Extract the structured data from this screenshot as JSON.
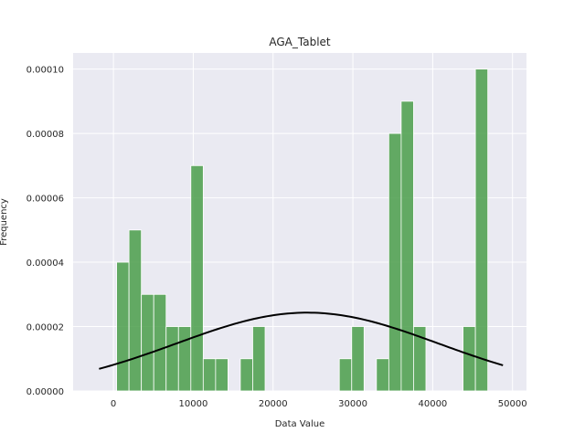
{
  "chart_data": {
    "type": "bar",
    "title": "AGA_Tablet",
    "xlabel": "Data Value",
    "ylabel": "Frequency",
    "xlim": [
      -5050,
      51750
    ],
    "ylim": [
      0,
      0.000105
    ],
    "grid": true,
    "bar_color": "#4a9e4a",
    "curve_color": "#000000",
    "background_color": "#eaeaf2",
    "xticks": [
      {
        "value": 0,
        "label": "0"
      },
      {
        "value": 10000,
        "label": "10000"
      },
      {
        "value": 20000,
        "label": "20000"
      },
      {
        "value": 30000,
        "label": "30000"
      },
      {
        "value": 40000,
        "label": "40000"
      },
      {
        "value": 50000,
        "label": "50000"
      }
    ],
    "yticks": [
      {
        "value": 0,
        "label": "0.00000"
      },
      {
        "value": 2e-05,
        "label": "0.00002"
      },
      {
        "value": 4e-05,
        "label": "0.00004"
      },
      {
        "value": 6e-05,
        "label": "0.00006"
      },
      {
        "value": 8e-05,
        "label": "0.00008"
      },
      {
        "value": 0.0001,
        "label": "0.00010"
      }
    ],
    "bin_edges": [
      400,
      1950,
      3500,
      5050,
      6600,
      8150,
      9700,
      11250,
      12800,
      14350,
      15900,
      17450,
      19000,
      20550,
      22100,
      23650,
      25200,
      26750,
      28300,
      29850,
      31400,
      32950,
      34500,
      36050,
      37600,
      39150,
      40700,
      42250,
      43800,
      45350,
      46900
    ],
    "values": [
      4e-05,
      5e-05,
      3e-05,
      3e-05,
      2e-05,
      2e-05,
      7e-05,
      1e-05,
      1e-05,
      0,
      1e-05,
      2e-05,
      0,
      0,
      0,
      0,
      0,
      0,
      1e-05,
      2e-05,
      0,
      1e-05,
      8e-05,
      9e-05,
      2e-05,
      0,
      0,
      0,
      2e-05,
      0.0001
    ],
    "normal_curve": {
      "mean": 24300,
      "std": 16400,
      "x_range": [
        -1800,
        48800
      ]
    }
  }
}
